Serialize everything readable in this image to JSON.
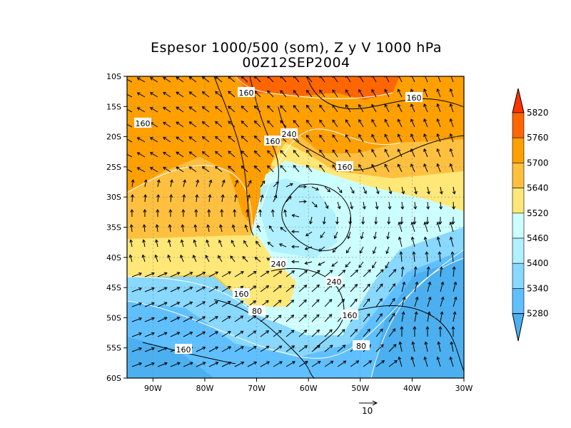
{
  "chart_data": {
    "type": "heatmap",
    "title": "Espesor 1000/500 (som), Z y V 1000 hPa",
    "subtitle": "00Z12SEP2004",
    "x_ticks": [
      "90W",
      "80W",
      "70W",
      "60W",
      "50W",
      "40W",
      "30W"
    ],
    "y_ticks": [
      "10S",
      "15S",
      "20S",
      "25S",
      "30S",
      "35S",
      "40S",
      "45S",
      "50S",
      "55S",
      "60S"
    ],
    "xlim": [
      -95,
      -30
    ],
    "ylim": [
      -60,
      -10
    ],
    "grid": true,
    "colorbar": {
      "levels": [
        "5820",
        "5760",
        "5700",
        "5640",
        "5520",
        "5460",
        "5400",
        "5340",
        "5280"
      ],
      "colors": [
        "#ff3300",
        "#ff6600",
        "#ffa000",
        "#ffc040",
        "#ffe878",
        "#ccffff",
        "#b0f0ff",
        "#88d8ff",
        "#60c0ff",
        "#4cb0f0"
      ]
    },
    "contour_labels": [
      "160",
      "160",
      "160",
      "240",
      "160",
      "160",
      "240",
      "240",
      "160",
      "80",
      "160",
      "80",
      "160"
    ],
    "vector_reference": "10"
  }
}
